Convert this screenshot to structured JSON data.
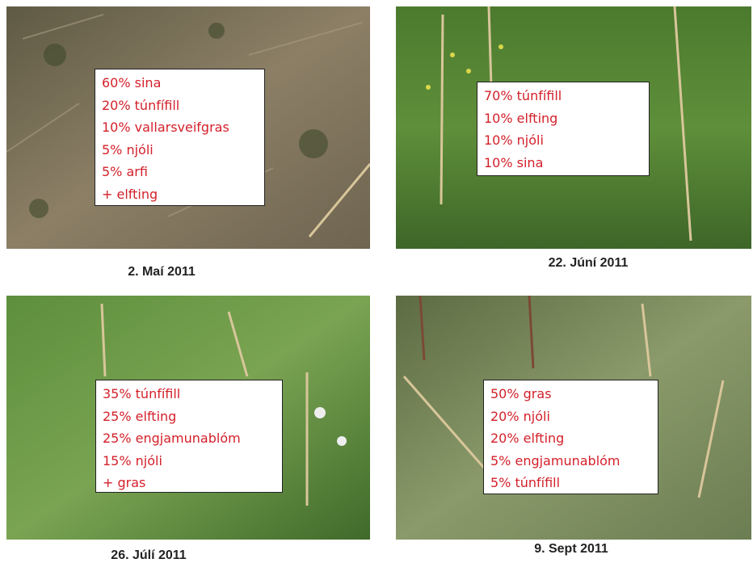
{
  "panels": [
    {
      "caption": "2. Maí 2011",
      "lines": [
        "60% sina",
        "20% túnfífill",
        "10% vallarsveifgras",
        "5% njóli",
        "5% arfi",
        "+ elfting"
      ]
    },
    {
      "caption": "22. Júní 2011",
      "lines": [
        "70% túnfífill",
        "10% elfting",
        "10% njóli",
        "10% sina"
      ]
    },
    {
      "caption": "26. Júlí 2011",
      "lines": [
        "35% túnfífill",
        "25% elfting",
        "25% engjamunablóm",
        "15% njóli",
        "+ gras"
      ]
    },
    {
      "caption": "9. Sept 2011",
      "lines": [
        "50% gras",
        "20% njóli",
        "20% elfting",
        "5% engjamunablóm",
        "5% túnfífill"
      ]
    }
  ]
}
